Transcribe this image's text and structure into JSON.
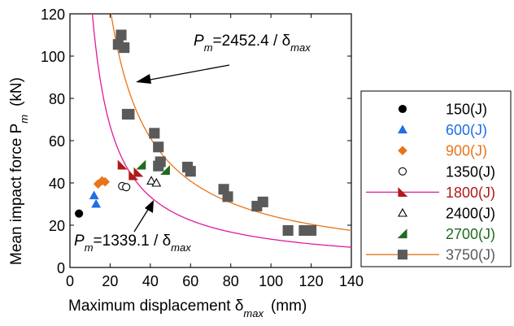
{
  "chart_data": {
    "type": "scatter",
    "xlabel": "Maximum displacement δ",
    "xlabel_sub": "max",
    "xlabel_unit": "(mm)",
    "ylabel": "Mean impact force P",
    "ylabel_sub": "m",
    "ylabel_unit": "(kN)",
    "xlim": [
      0,
      140
    ],
    "ylim": [
      0,
      120
    ],
    "xticks": [
      0,
      20,
      40,
      60,
      80,
      100,
      120,
      140
    ],
    "yticks": [
      0,
      20,
      40,
      60,
      80,
      100,
      120
    ],
    "grid": false,
    "legend_position": "right",
    "series": [
      {
        "name": "150(J)",
        "marker": "circle",
        "filled": true,
        "color": "#000000",
        "label_color": "#000000",
        "points": [
          [
            4.5,
            25.5
          ]
        ]
      },
      {
        "name": "600(J)",
        "marker": "triangle-up",
        "filled": true,
        "color": "#1f6fe5",
        "label_color": "#1f6fe5",
        "points": [
          [
            12,
            34
          ],
          [
            13,
            30
          ]
        ]
      },
      {
        "name": "900(J)",
        "marker": "diamond",
        "filled": true,
        "color": "#e8751a",
        "label_color": "#e8751a",
        "points": [
          [
            14,
            39.5
          ],
          [
            16,
            41
          ],
          [
            17.5,
            40.5
          ]
        ]
      },
      {
        "name": "1350(J)",
        "marker": "circle",
        "filled": false,
        "color": "#000000",
        "label_color": "#000000",
        "points": [
          [
            26,
            38.5
          ],
          [
            28,
            38
          ]
        ]
      },
      {
        "name": "1800(J)",
        "marker": "tri-left",
        "filled": true,
        "color": "#b01a1a",
        "label_color": "#b01a1a",
        "points": [
          [
            26,
            48.5
          ],
          [
            31.5,
            43.5
          ],
          [
            34,
            45
          ]
        ]
      },
      {
        "name": "2400(J)",
        "marker": "triangle-up",
        "filled": false,
        "color": "#000000",
        "label_color": "#000000",
        "points": [
          [
            40.5,
            41
          ],
          [
            43,
            40
          ]
        ]
      },
      {
        "name": "2700(J)",
        "marker": "tri-right",
        "filled": true,
        "color": "#1f6b1f",
        "label_color": "#1f6b1f",
        "points": [
          [
            35.5,
            48.5
          ],
          [
            47.5,
            46
          ]
        ]
      },
      {
        "name": "3750(J)",
        "marker": "square",
        "filled": true,
        "color": "#5a5a5a",
        "label_color": "#5a5a5a",
        "points": [
          [
            24,
            105.5
          ],
          [
            25.5,
            110
          ],
          [
            27,
            104
          ],
          [
            28.5,
            72.5
          ],
          [
            29.5,
            72.5
          ],
          [
            42,
            63.5
          ],
          [
            44,
            57
          ],
          [
            44,
            48
          ],
          [
            45,
            50
          ],
          [
            58.5,
            47.5
          ],
          [
            60,
            45.5
          ],
          [
            76.5,
            37
          ],
          [
            78.5,
            33.5
          ],
          [
            93,
            29
          ],
          [
            96,
            31
          ],
          [
            108.5,
            17.5
          ],
          [
            116.5,
            17.5
          ],
          [
            120,
            17.5
          ]
        ]
      }
    ],
    "curves": [
      {
        "name": "P_m=2452.4 / δ_max",
        "coefficient": 2452.4,
        "color": "#e8751a"
      },
      {
        "name": "P_m=1339.1 / δ_max",
        "coefficient": 1339.1,
        "color": "#e01a9a"
      }
    ],
    "annotations": [
      {
        "pre": "P",
        "sub1": "m",
        "mid": "=2452.4 / δ",
        "sub2": "max",
        "points_to": [
          37,
          88
        ]
      },
      {
        "pre": "P",
        "sub1": "m",
        "mid": "=1339.1 / δ",
        "sub2": "max",
        "points_to": [
          38,
          30
        ]
      }
    ]
  }
}
